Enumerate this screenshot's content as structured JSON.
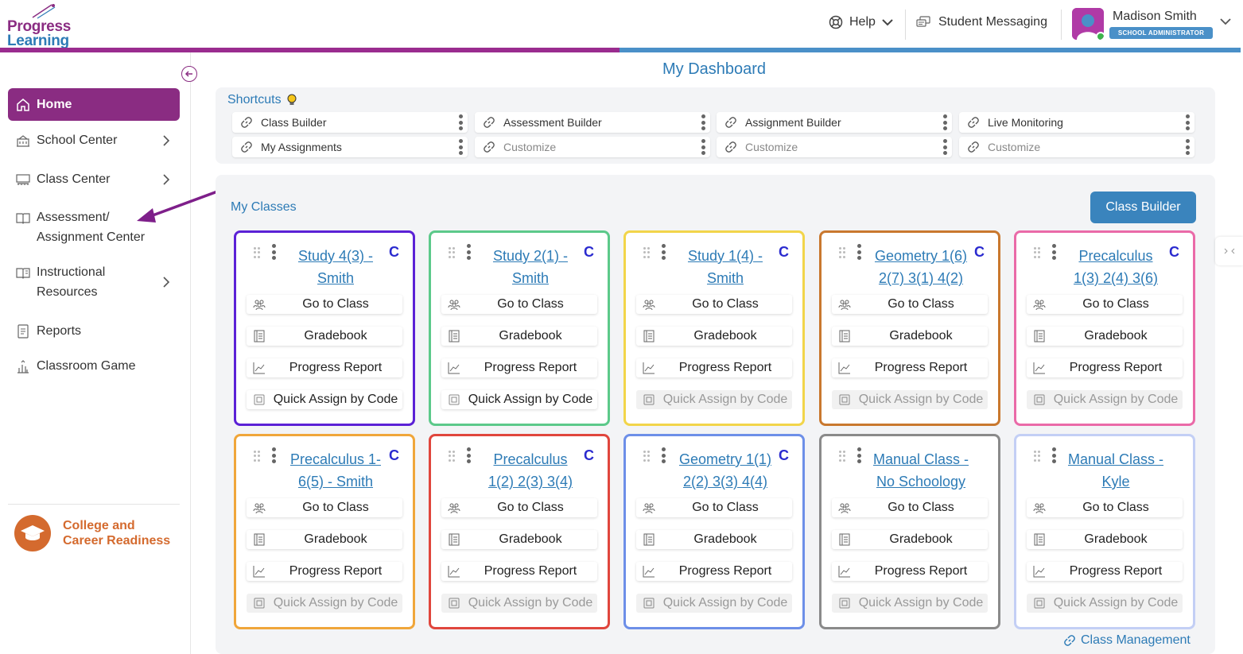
{
  "brand": {
    "line1": "Progress",
    "line2": "Learning"
  },
  "header": {
    "help_label": "Help",
    "messaging_label": "Student Messaging",
    "user_name": "Madison Smith",
    "user_role": "SCHOOL ADMINISTRATOR"
  },
  "sidebar": {
    "items": [
      {
        "label": "Home",
        "icon": "home-icon",
        "active": true
      },
      {
        "label": "School Center",
        "icon": "school-icon",
        "chevron": true
      },
      {
        "label": "Class Center",
        "icon": "class-icon",
        "chevron": true
      },
      {
        "label": "Assessment/ Assignment Center",
        "icon": "book-icon",
        "chevron": false
      },
      {
        "label": "Instructional Resources",
        "icon": "resources-icon",
        "chevron": true
      },
      {
        "label": "Reports",
        "icon": "reports-icon"
      },
      {
        "label": "Classroom Game",
        "icon": "game-icon"
      }
    ],
    "ccr_label_1": "College and",
    "ccr_label_2": "Career Readiness"
  },
  "main": {
    "title": "My Dashboard",
    "shortcuts_label": "Shortcuts",
    "shortcuts": [
      {
        "label": "Class Builder",
        "placeholder": false
      },
      {
        "label": "Assessment Builder",
        "placeholder": false
      },
      {
        "label": "Assignment Builder",
        "placeholder": false
      },
      {
        "label": "Live Monitoring",
        "placeholder": false
      },
      {
        "label": "My Assignments",
        "placeholder": false
      },
      {
        "label": "Customize",
        "placeholder": true
      },
      {
        "label": "Customize",
        "placeholder": true
      },
      {
        "label": "Customize",
        "placeholder": true
      }
    ],
    "my_classes_label": "My Classes",
    "class_builder_button": "Class Builder",
    "class_management_link": "Class Management",
    "action_labels": {
      "go": "Go to Class",
      "gradebook": "Gradebook",
      "progress": "Progress Report",
      "quick": "Quick Assign by Code"
    },
    "classes": [
      {
        "title_1": "Study 4(3) -",
        "title_2": "Smith",
        "badge": "C",
        "color": "#5b21d6",
        "quick_enabled": true
      },
      {
        "title_1": "Study 2(1) -",
        "title_2": "Smith",
        "badge": "C",
        "color": "#5cc98a",
        "quick_enabled": true
      },
      {
        "title_1": "Study 1(4) -",
        "title_2": "Smith",
        "badge": "C",
        "color": "#f2d54a",
        "quick_enabled": false
      },
      {
        "title_1": "Geometry 1(6)",
        "title_2": "2(7) 3(1) 4(2)",
        "badge": "C",
        "color": "#c9782e",
        "quick_enabled": false
      },
      {
        "title_1": "Precalculus",
        "title_2": "1(3) 2(4) 3(6)",
        "badge": "C",
        "color": "#ea6aa8",
        "quick_enabled": false
      },
      {
        "title_1": "Precalculus 1-",
        "title_2": "6(5) - Smith",
        "badge": "C",
        "color": "#f0a63a",
        "quick_enabled": false
      },
      {
        "title_1": "Precalculus",
        "title_2": "1(2) 2(3) 3(4)",
        "badge": "C",
        "color": "#e0463d",
        "quick_enabled": false
      },
      {
        "title_1": "Geometry 1(1)",
        "title_2": "2(2) 3(3) 4(4)",
        "badge": "C",
        "color": "#6d8fe8",
        "quick_enabled": false
      },
      {
        "title_1": "Manual Class -",
        "title_2": "No Schoology",
        "badge": "",
        "color": "#8a8a8a",
        "quick_enabled": false
      },
      {
        "title_1": "Manual Class -",
        "title_2": "Kyle",
        "badge": "",
        "color": "#c3cff5",
        "quick_enabled": false
      }
    ]
  }
}
